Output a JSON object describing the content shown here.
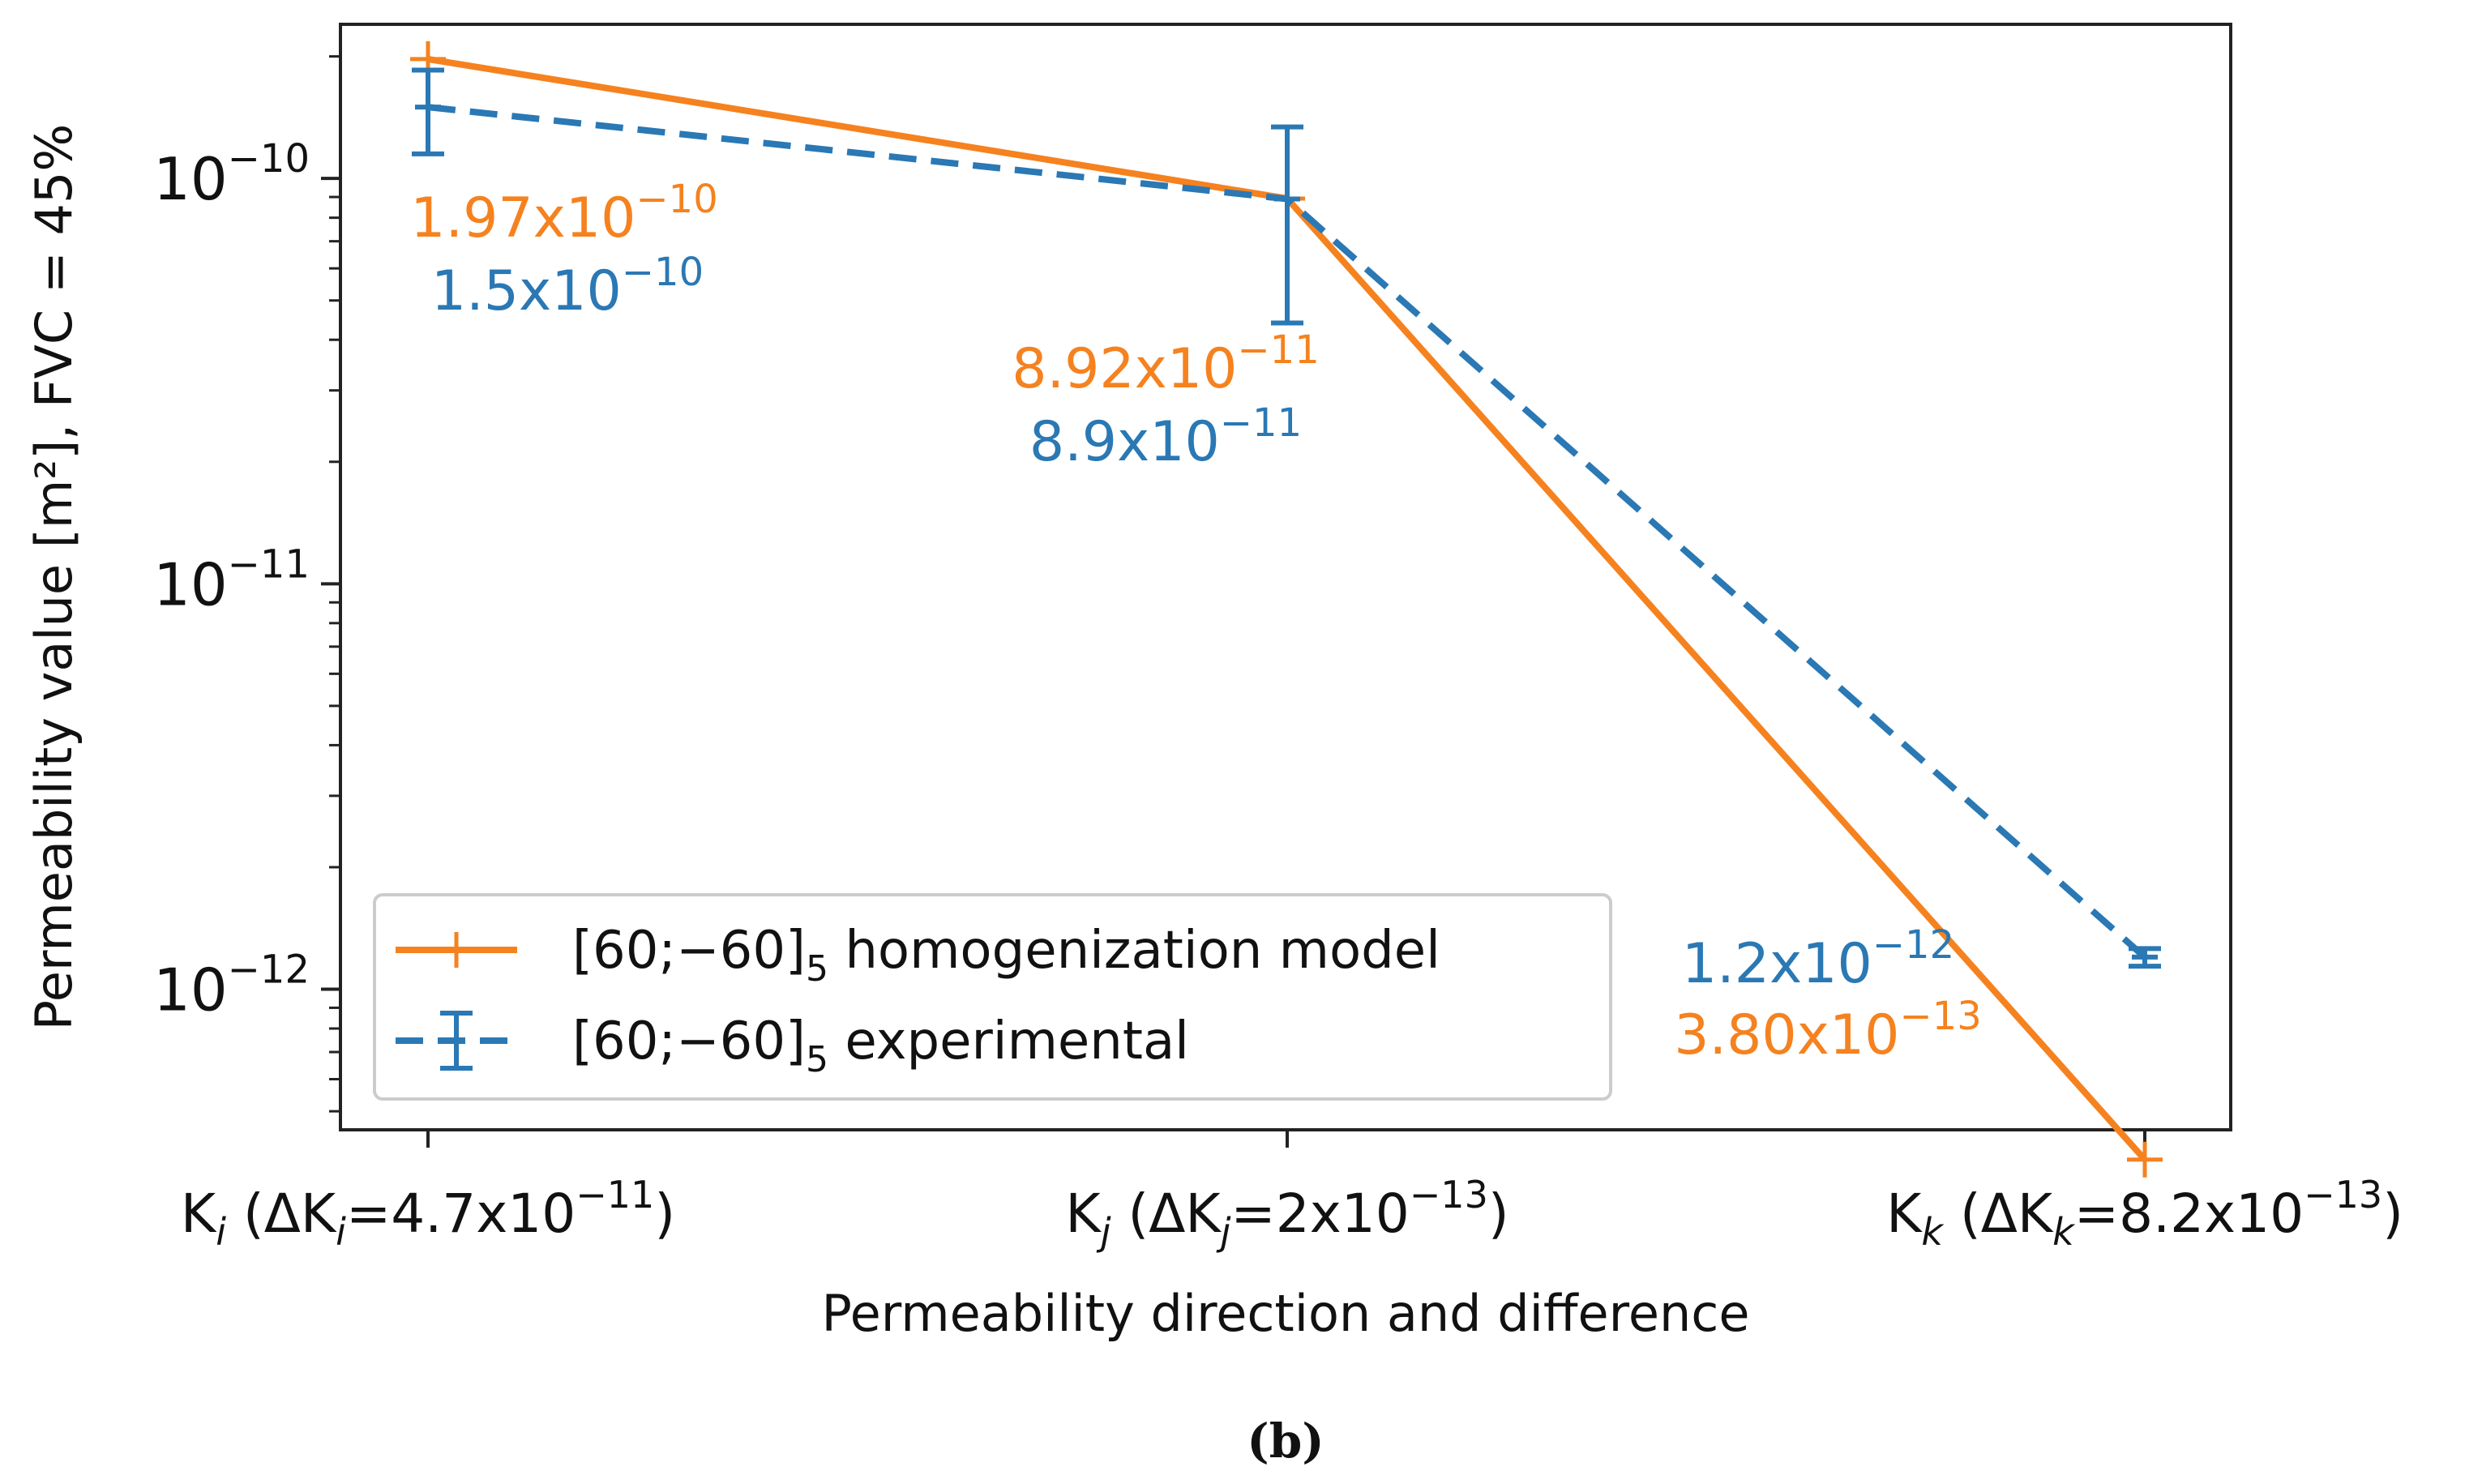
{
  "chart_data": {
    "type": "line",
    "yscale": "log",
    "ylim": [
      4.5e-13,
      2.4e-10
    ],
    "ylabel": "Permeability value [m²], FVC = 45%",
    "xlabel": "Permeability direction and difference",
    "caption": "(b)",
    "categories": [
      "Kᵢ (ΔKᵢ=4.7x10⁻¹¹)",
      "Kⱼ (ΔKⱼ=2x10⁻¹³)",
      "Kₖ (ΔKₖ=8.2x10⁻¹³)"
    ],
    "category_parts": [
      {
        "main": "K",
        "sub": "i",
        "pre": " (ΔK",
        "sub2": "i",
        "rest": "=4.7x10",
        "exp": "−11",
        "close": ")"
      },
      {
        "main": "K",
        "sub": "j",
        "pre": " (ΔK",
        "sub2": "j",
        "rest": "=2x10",
        "exp": "−13",
        "close": ")"
      },
      {
        "main": "K",
        "sub": "k",
        "pre": " (ΔK",
        "sub2": "k",
        "rest": "=8.2x10",
        "exp": "−13",
        "close": ")"
      }
    ],
    "yticks": [
      {
        "value": 1e-10,
        "base": "10",
        "exp": "−10"
      },
      {
        "value": 1e-11,
        "base": "10",
        "exp": "−11"
      },
      {
        "value": 1e-12,
        "base": "10",
        "exp": "−12"
      }
    ],
    "series": [
      {
        "name": "[60;−60]₅ homogenization model",
        "legend_base": "[60;−60]",
        "legend_sub": "5",
        "legend_rest": " homogenization model",
        "color": "#f5821f",
        "style": "solid",
        "values": [
          1.97e-10,
          8.92e-11,
          3.8e-13
        ],
        "labels": [
          {
            "mant": "1.97x10",
            "exp": "−10"
          },
          {
            "mant": "8.92x10",
            "exp": "−11"
          },
          {
            "mant": "3.80x10",
            "exp": "−13"
          }
        ]
      },
      {
        "name": "[60;−60]₅ experimental",
        "legend_base": "[60;−60]",
        "legend_sub": "5",
        "legend_rest": " experimental",
        "color": "#2a78b4",
        "style": "dashed",
        "values": [
          1.5e-10,
          8.9e-11,
          1.2e-12
        ],
        "errors": [
          3.5e-11,
          4.5e-11,
          6e-14
        ],
        "labels": [
          {
            "mant": "1.5x10",
            "exp": "−10"
          },
          {
            "mant": "8.9x10",
            "exp": "−11"
          },
          {
            "mant": "1.2x10",
            "exp": "−12"
          }
        ]
      }
    ],
    "legend_position": "lower-left"
  }
}
